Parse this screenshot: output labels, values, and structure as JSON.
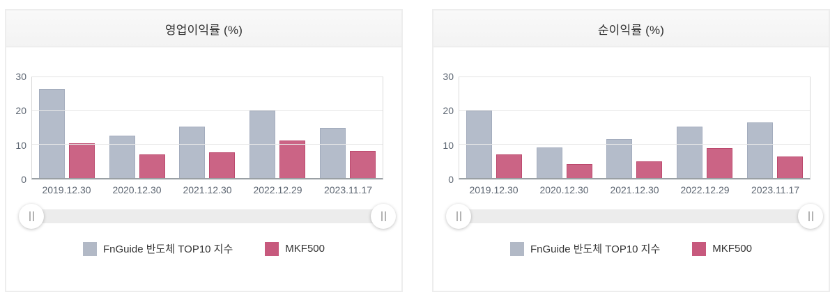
{
  "chart_data": [
    {
      "type": "bar",
      "title": "영업이익률 (%)",
      "categories": [
        "2019.12.30",
        "2020.12.30",
        "2021.12.30",
        "2022.12.29",
        "2023.11.17"
      ],
      "series": [
        {
          "name": "FnGuide 반도체 TOP10 지수",
          "values": [
            26.4,
            12.7,
            15.3,
            20.0,
            14.9
          ],
          "color": "#b4bcca",
          "border_color": "#a3acbd"
        },
        {
          "name": "MKF500",
          "values": [
            10.3,
            7.0,
            7.7,
            11.1,
            8.1
          ],
          "color": "#cb6485",
          "border_color": "#bc4a6e"
        }
      ],
      "ylim": [
        0,
        30
      ],
      "yticks": [
        0,
        10,
        20,
        30
      ],
      "grid": true,
      "legend_position": "bottom"
    },
    {
      "type": "bar",
      "title": "순이익률 (%)",
      "categories": [
        "2019.12.30",
        "2020.12.30",
        "2021.12.30",
        "2022.12.29",
        "2023.11.17"
      ],
      "series": [
        {
          "name": "FnGuide 반도체 TOP10 지수",
          "values": [
            20.0,
            9.2,
            11.6,
            15.3,
            16.6
          ],
          "color": "#b4bcca",
          "border_color": "#a3acbd"
        },
        {
          "name": "MKF500",
          "values": [
            7.0,
            4.1,
            4.9,
            9.0,
            6.5
          ],
          "color": "#cb6485",
          "border_color": "#bc4a6e"
        }
      ],
      "ylim": [
        0,
        30
      ],
      "yticks": [
        0,
        10,
        20,
        30
      ],
      "grid": true,
      "legend_position": "bottom"
    }
  ],
  "scrollbar": {
    "handle_glyph": "‖"
  }
}
